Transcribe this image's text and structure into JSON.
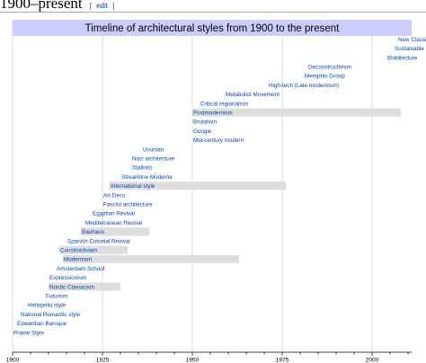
{
  "section": {
    "title": "1900–present",
    "edit_open": "[",
    "edit_label": "edit",
    "edit_close": "]"
  },
  "colors": {
    "title_band": "#ccccff",
    "duration_bar": "#dddddd",
    "grid": "#cccccc",
    "link": "#0645ad",
    "axis": "#000000"
  },
  "chart_data": {
    "type": "timeline",
    "title": "Timeline of architectural styles from 1900 to the present",
    "xlim": [
      1900,
      2011
    ],
    "x_ticks": [
      1900,
      1925,
      1950,
      1975,
      2000
    ],
    "minor_tick_step": 5,
    "styles": [
      {
        "name": "Prairie Style",
        "start": 1900
      },
      {
        "name": "Edwardian Baroque",
        "start": 1901
      },
      {
        "name": "National Romantic style",
        "start": 1902
      },
      {
        "name": "Heliopolis style",
        "start": 1904
      },
      {
        "name": "Futurism",
        "start": 1909
      },
      {
        "name": "Nordic Classicism",
        "start": 1910,
        "end": 1930
      },
      {
        "name": "Expressionism",
        "start": 1910
      },
      {
        "name": "Amsterdam School",
        "start": 1912
      },
      {
        "name": "Modernism",
        "start": 1914,
        "end": 1963
      },
      {
        "name": "Constructivism",
        "start": 1913,
        "end": 1932
      },
      {
        "name": "Spanish Colonial Revival",
        "start": 1915
      },
      {
        "name": "Bauhaus",
        "start": 1919,
        "end": 1938
      },
      {
        "name": "Mediterranean Revival",
        "start": 1920
      },
      {
        "name": "Egyptian Revival",
        "start": 1922
      },
      {
        "name": "Fascist architecture",
        "start": 1925
      },
      {
        "name": "Art Deco",
        "start": 1925
      },
      {
        "name": "International style",
        "start": 1927,
        "end": 1976
      },
      {
        "name": "Streamline Moderne",
        "start": 1930
      },
      {
        "name": "Stalinist",
        "start": 1933
      },
      {
        "name": "Nazi architecture",
        "start": 1933
      },
      {
        "name": "Usonian",
        "start": 1936
      },
      {
        "name": "Mid-century modern",
        "start": 1950
      },
      {
        "name": "Googie",
        "start": 1950
      },
      {
        "name": "Brutalism",
        "start": 1950
      },
      {
        "name": "Postmodernism",
        "start": 1950,
        "end": 2008
      },
      {
        "name": "Critical regionalism",
        "start": 1952
      },
      {
        "name": "Metabolist Movement",
        "start": 1959
      },
      {
        "name": "High-tech (Late modernism)",
        "start": 1971
      },
      {
        "name": "Memphis Group",
        "start": 1981
      },
      {
        "name": "Deconstructivism",
        "start": 1982
      },
      {
        "name": "Blobitecture",
        "start": 2004
      },
      {
        "name": "Sustainable",
        "start": 2006
      },
      {
        "name": "New Classical",
        "start": 2007
      }
    ]
  }
}
